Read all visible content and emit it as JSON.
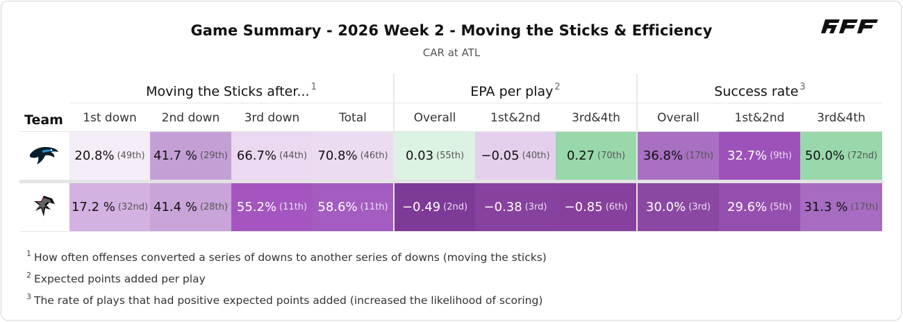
{
  "header": {
    "title": "Game Summary - 2026 Week 2 - Moving the Sticks & Efficiency",
    "subtitle": "CAR at ATL",
    "logo": "PFF"
  },
  "table": {
    "team_label": "Team",
    "groups": [
      {
        "label": "Moving the Sticks after...",
        "note": "1"
      },
      {
        "label": "EPA per play",
        "note": "2"
      },
      {
        "label": "Success rate",
        "note": "3"
      }
    ],
    "columns": [
      "1st down",
      "2nd down",
      "3rd down",
      "Total",
      "Overall",
      "1st&2nd",
      "3rd&4th",
      "Overall",
      "1st&2nd",
      "3rd&4th"
    ],
    "rows": [
      {
        "team": "CAR",
        "team_icon": "panthers-logo-icon",
        "cells": [
          {
            "value": "20.8%",
            "rank": "(49th)",
            "color": "#f4ecf7",
            "dark": false
          },
          {
            "value": "41.7 %",
            "rank": "(29th)",
            "color": "#c49fd6",
            "dark": false
          },
          {
            "value": "66.7%",
            "rank": "(44th)",
            "color": "#ead9f0",
            "dark": false
          },
          {
            "value": "70.8%",
            "rank": "(46th)",
            "color": "#ecdcf1",
            "dark": false
          },
          {
            "value": "0.03",
            "rank": "(55th)",
            "color": "#dcf2e2",
            "dark": false
          },
          {
            "value": "−0.05",
            "rank": "(40th)",
            "color": "#e4d0ec",
            "dark": false
          },
          {
            "value": "0.27",
            "rank": "(70th)",
            "color": "#98d8ab",
            "dark": false
          },
          {
            "value": "36.8%",
            "rank": "(17th)",
            "color": "#a86fc2",
            "dark": false
          },
          {
            "value": "32.7%",
            "rank": "(9th)",
            "color": "#9d52ba",
            "dark": true
          },
          {
            "value": "50.0%",
            "rank": "(72nd)",
            "color": "#98d8ab",
            "dark": false
          }
        ]
      },
      {
        "team": "ATL",
        "team_icon": "falcons-logo-icon",
        "cells": [
          {
            "value": "17.2 %",
            "rank": "(32nd)",
            "color": "#d3b1e0",
            "dark": false
          },
          {
            "value": "41.4 %",
            "rank": "(28th)",
            "color": "#c8a4d8",
            "dark": false
          },
          {
            "value": "55.2%",
            "rank": "(11th)",
            "color": "#a455c0",
            "dark": true
          },
          {
            "value": "58.6%",
            "rank": "(11th)",
            "color": "#a45cc0",
            "dark": true
          },
          {
            "value": "−0.49",
            "rank": "(2nd)",
            "color": "#7d3a96",
            "dark": true
          },
          {
            "value": "−0.38",
            "rank": "(3rd)",
            "color": "#86429e",
            "dark": true
          },
          {
            "value": "−0.85",
            "rank": "(6th)",
            "color": "#87409d",
            "dark": true
          },
          {
            "value": "30.0%",
            "rank": "(3rd)",
            "color": "#8a48a3",
            "dark": true
          },
          {
            "value": "29.6%",
            "rank": "(5th)",
            "color": "#954fae",
            "dark": true
          },
          {
            "value": "31.3 %",
            "rank": "(17th)",
            "color": "#a76cc2",
            "dark": false
          }
        ]
      }
    ]
  },
  "footnotes": [
    {
      "num": "1",
      "text": "How often offenses converted a series of downs to another series of downs (moving the sticks)"
    },
    {
      "num": "2",
      "text": "Expected points added per play"
    },
    {
      "num": "3",
      "text": "The rate of plays that had positive expected points added (increased the likelihood of scoring)"
    }
  ]
}
